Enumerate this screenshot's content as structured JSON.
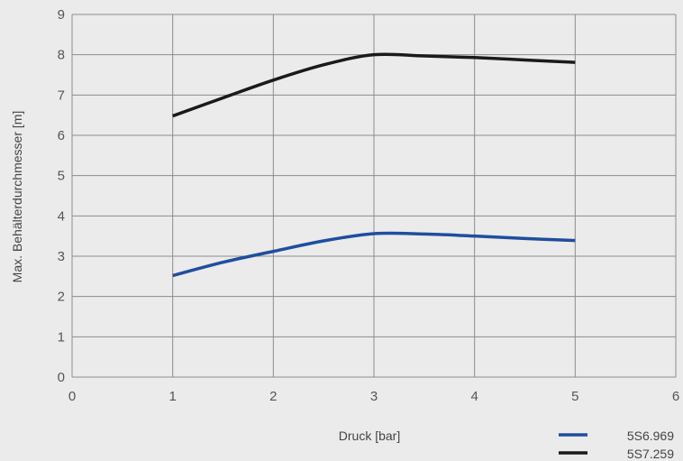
{
  "chart_data": {
    "type": "line",
    "xlabel": "Druck [bar]",
    "ylabel": "Max. Behälterdurchmesser [m]",
    "xlim": [
      0,
      6
    ],
    "ylim": [
      0,
      9
    ],
    "xticks": [
      "0",
      "1",
      "2",
      "3",
      "4",
      "5",
      "6"
    ],
    "yticks": [
      "0",
      "1",
      "2",
      "3",
      "4",
      "5",
      "6",
      "7",
      "8",
      "9"
    ],
    "grid": true,
    "legend_position": "bottom-right",
    "series": [
      {
        "name": "5S6.969",
        "color": "#1f4e9e",
        "x": [
          1,
          1.5,
          2,
          2.5,
          3,
          3.5,
          4,
          4.5,
          5
        ],
        "y": [
          2.52,
          2.85,
          3.12,
          3.38,
          3.56,
          3.55,
          3.5,
          3.44,
          3.39
        ]
      },
      {
        "name": "5S7.259",
        "color": "#1a1a1a",
        "x": [
          1,
          1.5,
          2,
          2.5,
          3,
          3.5,
          4,
          4.5,
          5
        ],
        "y": [
          6.48,
          6.93,
          7.37,
          7.75,
          8.0,
          7.97,
          7.93,
          7.87,
          7.81
        ]
      }
    ]
  }
}
